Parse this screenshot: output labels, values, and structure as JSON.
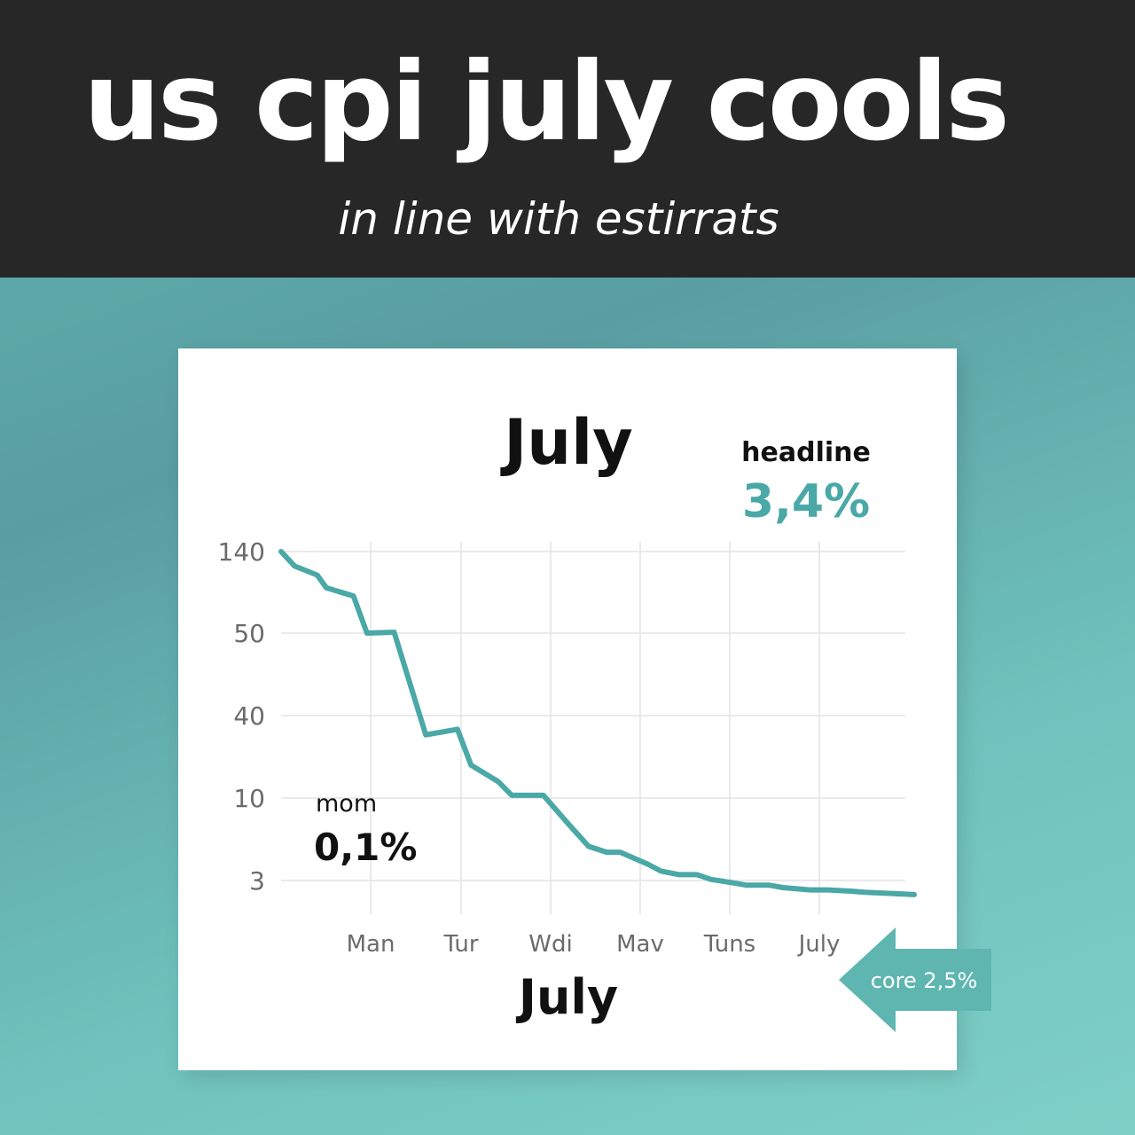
{
  "header": {
    "title": "us cpi july cools",
    "subtitle": "in line with estirrats"
  },
  "colors": {
    "header_bg": "#272727",
    "accent": "#4aa8a6",
    "line": "#4aa8a6",
    "text_dark": "#111111",
    "tick_text": "#6b6b6b",
    "grid": "#e4e4e4"
  },
  "chart_data": {
    "type": "line",
    "title": "July",
    "xlabel": "July",
    "ylabel": "",
    "y_ticks": [
      "140",
      "50",
      "40",
      "10",
      "3"
    ],
    "x_ticks": [
      "Man",
      "Tur",
      "Wdi",
      "Mav",
      "Tuns",
      "July"
    ],
    "grid": true,
    "series": [
      {
        "x": [
          0,
          0.15,
          0.4,
          0.5,
          0.8,
          0.95,
          1.25,
          1.6,
          1.95,
          2.1,
          2.4,
          2.55,
          2.9,
          3.2,
          3.4,
          3.6,
          3.75,
          4.05,
          4.2,
          4.4,
          4.6,
          4.75,
          5.0,
          5.15,
          5.4,
          5.55,
          5.85,
          6.05,
          6.3,
          6.45,
          6.75,
          7.0
        ],
        "values": [
          140,
          124,
          114,
          100,
          91,
          50,
          51,
          33,
          35,
          22,
          16,
          11,
          11,
          7.6,
          5.9,
          5.4,
          5.4,
          4.4,
          3.8,
          3.5,
          3.5,
          3.1,
          2.8,
          2.6,
          2.6,
          2.4,
          2.2,
          2.2,
          2.1,
          2.0,
          1.9,
          1.8
        ]
      }
    ],
    "annotations": {
      "headline_label": "headline",
      "headline_value": "3,4%",
      "mom_label": "mom",
      "mom_value": "0,1%",
      "core_label": "core 2,5%"
    }
  }
}
